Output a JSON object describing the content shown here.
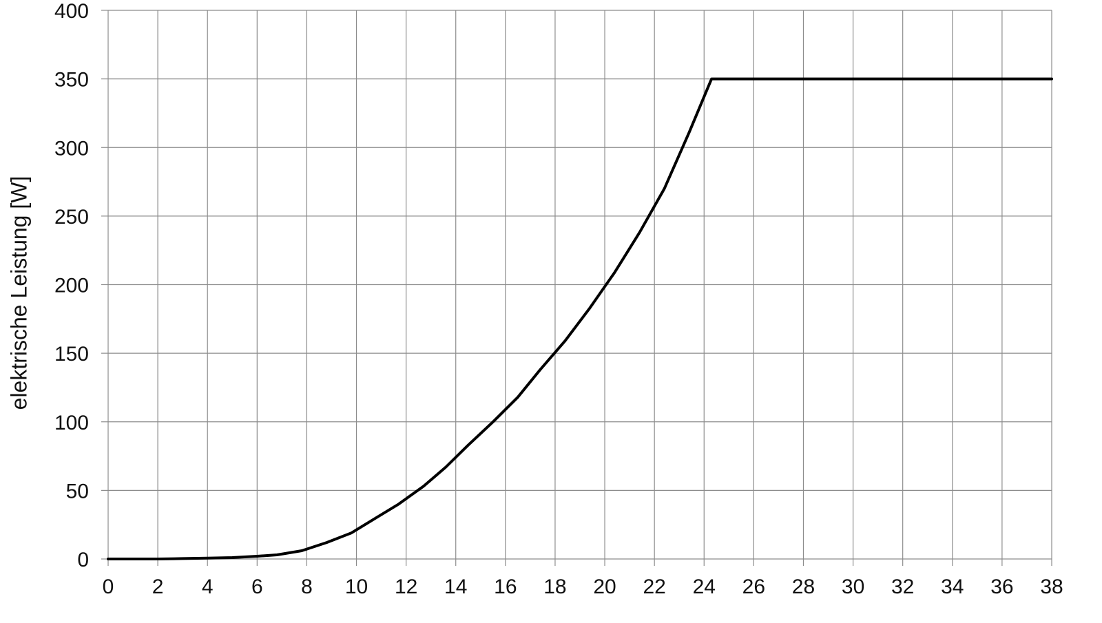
{
  "chart_data": {
    "type": "line",
    "title": "",
    "xlabel": "",
    "ylabel": "elektrische Leistung   [W]",
    "xlim": [
      0,
      38
    ],
    "ylim": [
      0,
      400
    ],
    "x_ticks": [
      "0",
      "2",
      "4",
      "6",
      "8",
      "10",
      "12",
      "14",
      "16",
      "18",
      "20",
      "22",
      "24",
      "26",
      "28",
      "30",
      "32",
      "34",
      "36",
      "38"
    ],
    "y_ticks": [
      "0",
      "50",
      "100",
      "150",
      "200",
      "250",
      "300",
      "350",
      "400"
    ],
    "grid": true,
    "legend": "none",
    "line_color": "#000000",
    "grid_color": "#8c8c8c",
    "series": [
      {
        "x": [
          0,
          2,
          3,
          4,
          5,
          6,
          6.8,
          7.8,
          8.8,
          9.8,
          10.7,
          11.7,
          12.7,
          13.6,
          14.5,
          15.5,
          16.5,
          17.4,
          18.4,
          19.4,
          20.4,
          21.4,
          22.4,
          23.4,
          24.3,
          38
        ],
        "y": [
          0,
          0,
          0.3,
          0.6,
          1,
          2,
          3,
          6,
          12,
          19,
          29,
          40,
          53,
          67,
          83,
          100,
          118,
          138,
          159,
          183,
          209,
          238,
          270,
          311,
          350,
          350
        ]
      }
    ]
  }
}
